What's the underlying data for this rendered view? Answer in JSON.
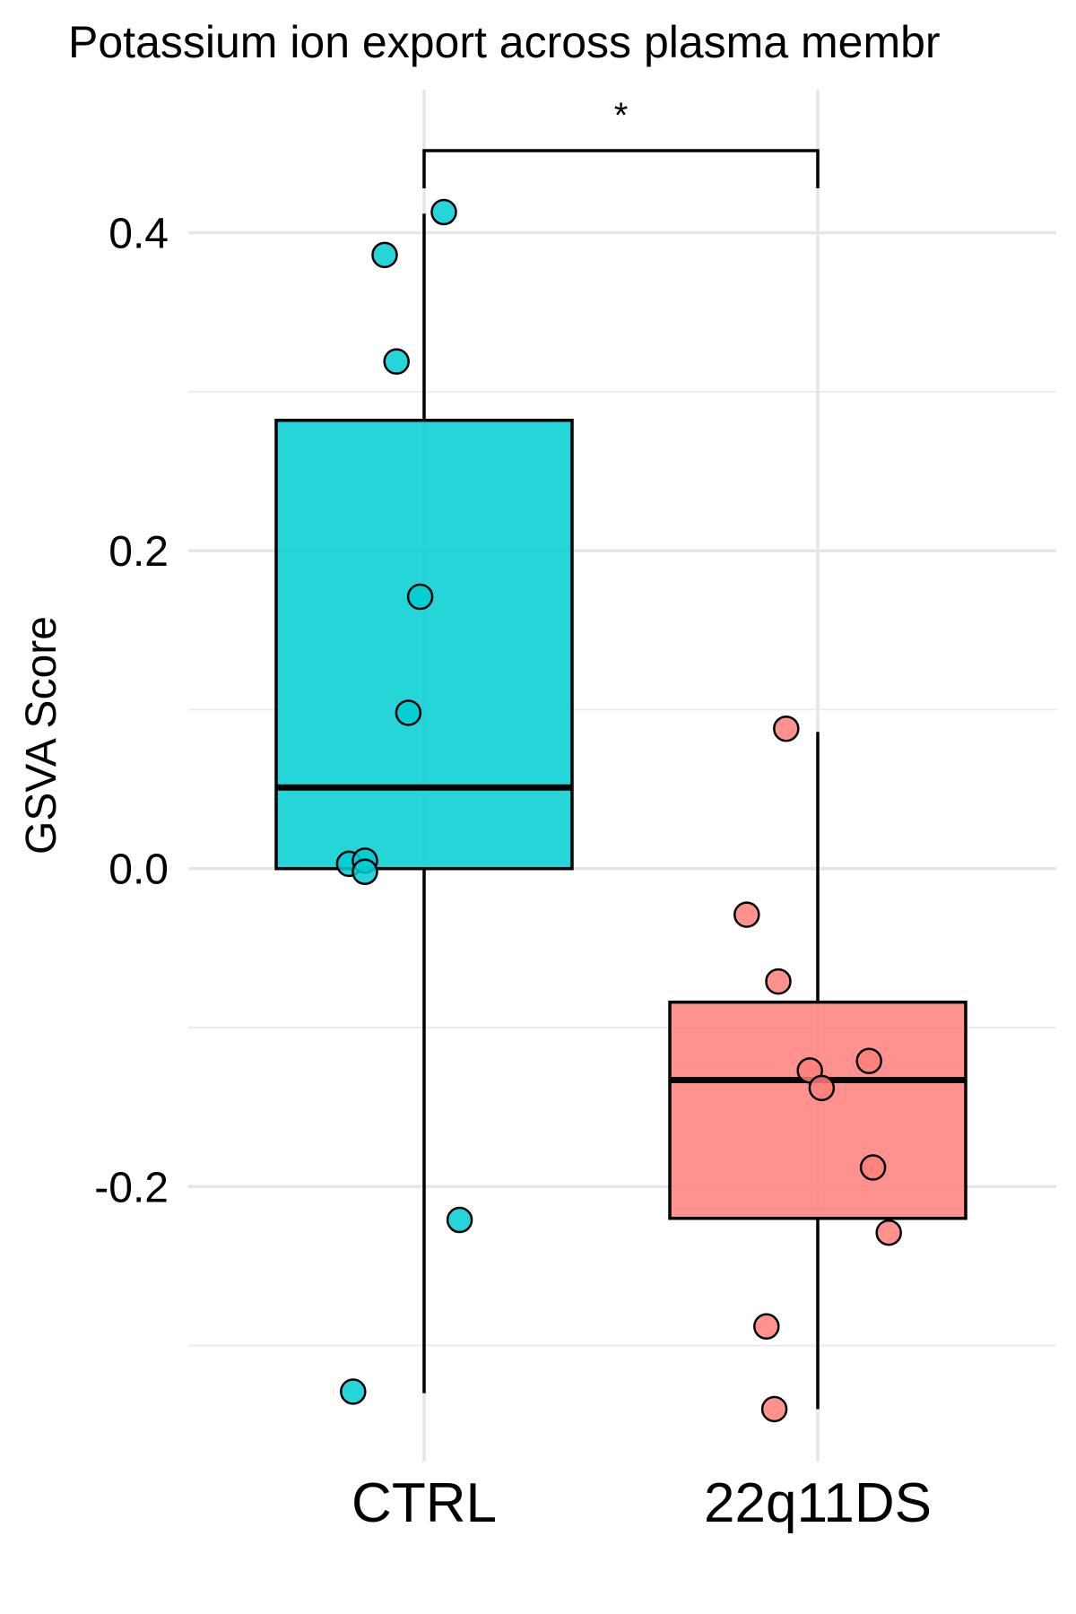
{
  "chart_data": {
    "type": "box",
    "title": "Potassium ion export across plasma membr",
    "xlabel": "",
    "ylabel": "GSVA Score",
    "categories": [
      "CTRL",
      "22q11DS"
    ],
    "ylim": [
      -0.373,
      0.49
    ],
    "yticks": [
      {
        "value": 0.4,
        "label": "0.4"
      },
      {
        "value": 0.2,
        "label": "0.2"
      },
      {
        "value": 0.0,
        "label": "0.0"
      },
      {
        "value": -0.2,
        "label": "-0.2"
      }
    ],
    "minor_gridlines": [
      0.3,
      0.1,
      -0.1,
      -0.3
    ],
    "grid": true,
    "legend": "none",
    "boxes": [
      {
        "group": "CTRL",
        "color": "#00CED1",
        "q1": 0.0,
        "median": 0.051,
        "q3": 0.282,
        "whisker_low": -0.33,
        "whisker_high": 0.412
      },
      {
        "group": "22q11DS",
        "color": "#FF7F7A",
        "q1": -0.22,
        "median": -0.133,
        "q3": -0.084,
        "whisker_low": -0.34,
        "whisker_high": 0.086
      }
    ],
    "points": [
      {
        "group": "CTRL",
        "jitter": 0.05,
        "y": 0.413
      },
      {
        "group": "CTRL",
        "jitter": -0.1,
        "y": 0.386
      },
      {
        "group": "CTRL",
        "jitter": -0.07,
        "y": 0.319
      },
      {
        "group": "CTRL",
        "jitter": -0.01,
        "y": 0.171
      },
      {
        "group": "CTRL",
        "jitter": -0.04,
        "y": 0.098
      },
      {
        "group": "CTRL",
        "jitter": -0.19,
        "y": 0.003
      },
      {
        "group": "CTRL",
        "jitter": -0.15,
        "y": 0.005
      },
      {
        "group": "CTRL",
        "jitter": -0.15,
        "y": -0.002
      },
      {
        "group": "CTRL",
        "jitter": 0.09,
        "y": -0.221
      },
      {
        "group": "CTRL",
        "jitter": -0.18,
        "y": -0.329
      },
      {
        "group": "22q11DS",
        "jitter": -0.08,
        "y": 0.088
      },
      {
        "group": "22q11DS",
        "jitter": -0.18,
        "y": -0.029
      },
      {
        "group": "22q11DS",
        "jitter": -0.1,
        "y": -0.071
      },
      {
        "group": "22q11DS",
        "jitter": -0.02,
        "y": -0.127
      },
      {
        "group": "22q11DS",
        "jitter": 0.01,
        "y": -0.138
      },
      {
        "group": "22q11DS",
        "jitter": 0.13,
        "y": -0.121
      },
      {
        "group": "22q11DS",
        "jitter": 0.14,
        "y": -0.188
      },
      {
        "group": "22q11DS",
        "jitter": 0.18,
        "y": -0.229
      },
      {
        "group": "22q11DS",
        "jitter": -0.13,
        "y": -0.288
      },
      {
        "group": "22q11DS",
        "jitter": -0.11,
        "y": -0.34
      }
    ],
    "annotations": [
      {
        "type": "significance-bracket",
        "from": "CTRL",
        "to": "22q11DS",
        "label": "*"
      }
    ]
  }
}
